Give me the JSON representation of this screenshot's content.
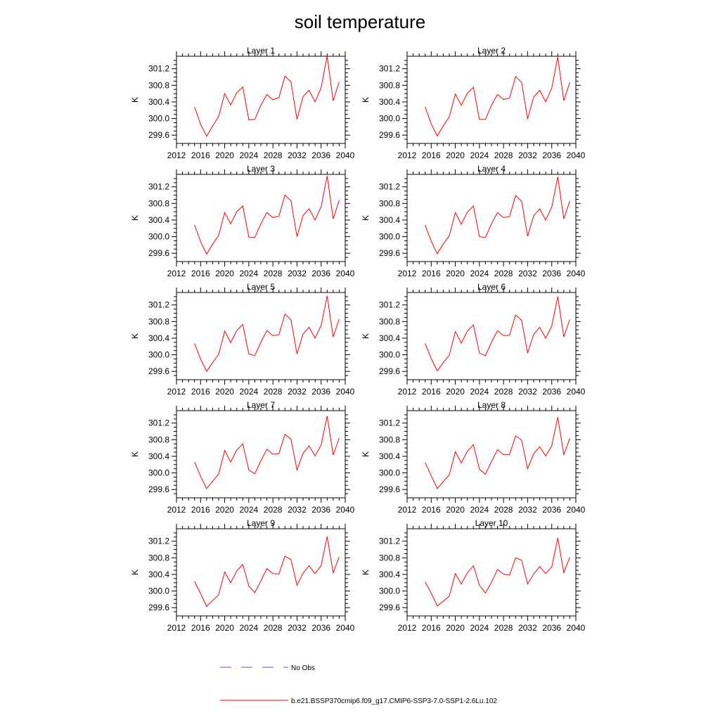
{
  "chart_data": {
    "type": "line",
    "title": "soil temperature",
    "ylabel": "K",
    "xlim": [
      2012,
      2040
    ],
    "ylim": [
      299.4,
      301.5
    ],
    "x_ticks": [
      2012,
      2016,
      2020,
      2024,
      2028,
      2032,
      2036,
      2040
    ],
    "y_ticks": [
      299.6,
      300.0,
      300.4,
      300.8,
      301.2
    ],
    "y_tick_labels": [
      "299.6",
      "300.0",
      "300.4",
      "300.8",
      "301.2"
    ],
    "x": [
      2015,
      2016,
      2017,
      2018,
      2019,
      2020,
      2021,
      2022,
      2023,
      2024,
      2025,
      2026,
      2027,
      2028,
      2029,
      2030,
      2031,
      2032,
      2033,
      2034,
      2035,
      2036,
      2037,
      2038,
      2039
    ],
    "series_color": "#ff0000",
    "panels": [
      {
        "title": "Layer 1",
        "values": [
          300.28,
          299.86,
          299.57,
          299.82,
          300.05,
          300.6,
          300.33,
          300.62,
          300.76,
          299.97,
          299.98,
          300.32,
          300.58,
          300.45,
          300.5,
          301.02,
          300.88,
          299.98,
          300.53,
          300.68,
          300.4,
          300.74,
          301.5,
          300.43,
          300.88
        ]
      },
      {
        "title": "Layer 2",
        "values": [
          300.28,
          299.87,
          299.58,
          299.82,
          300.04,
          300.59,
          300.32,
          300.61,
          300.75,
          299.98,
          299.98,
          300.32,
          300.58,
          300.46,
          300.49,
          301.01,
          300.87,
          299.99,
          300.52,
          300.68,
          300.4,
          300.73,
          301.48,
          300.43,
          300.87
        ]
      },
      {
        "title": "Layer 3",
        "values": [
          300.28,
          299.88,
          299.58,
          299.82,
          300.03,
          300.58,
          300.31,
          300.6,
          300.74,
          299.99,
          299.98,
          300.31,
          300.58,
          300.46,
          300.49,
          301.0,
          300.86,
          300.0,
          300.51,
          300.67,
          300.4,
          300.72,
          301.46,
          300.43,
          300.87
        ]
      },
      {
        "title": "Layer 4",
        "values": [
          300.28,
          299.89,
          299.59,
          299.82,
          300.02,
          300.58,
          300.3,
          300.59,
          300.74,
          300.0,
          299.98,
          300.31,
          300.58,
          300.46,
          300.48,
          300.99,
          300.85,
          300.01,
          300.5,
          300.67,
          300.4,
          300.71,
          301.44,
          300.43,
          300.86
        ]
      },
      {
        "title": "Layer 5",
        "values": [
          300.27,
          299.9,
          299.6,
          299.81,
          300.01,
          300.57,
          300.29,
          300.58,
          300.73,
          300.02,
          299.98,
          300.3,
          300.58,
          300.46,
          300.48,
          300.98,
          300.84,
          300.02,
          300.5,
          300.66,
          300.4,
          300.7,
          301.42,
          300.43,
          300.86
        ]
      },
      {
        "title": "Layer 6",
        "values": [
          300.27,
          299.91,
          299.61,
          299.81,
          299.99,
          300.56,
          300.28,
          300.57,
          300.72,
          300.04,
          299.98,
          300.3,
          300.58,
          300.46,
          300.47,
          300.96,
          300.83,
          300.04,
          300.49,
          300.66,
          300.4,
          300.69,
          301.4,
          300.43,
          300.85
        ]
      },
      {
        "title": "Layer 7",
        "values": [
          300.26,
          299.92,
          299.62,
          299.8,
          299.97,
          300.54,
          300.26,
          300.55,
          300.7,
          300.07,
          299.98,
          300.29,
          300.57,
          300.45,
          300.46,
          300.93,
          300.81,
          300.07,
          300.47,
          300.65,
          300.41,
          300.67,
          301.37,
          300.43,
          300.84
        ]
      },
      {
        "title": "Layer 8",
        "values": [
          300.25,
          299.93,
          299.62,
          299.79,
          299.95,
          300.51,
          300.24,
          300.52,
          300.68,
          300.09,
          299.97,
          300.27,
          300.56,
          300.44,
          300.44,
          300.89,
          300.79,
          300.1,
          300.46,
          300.63,
          300.41,
          300.65,
          301.34,
          300.44,
          300.83
        ]
      },
      {
        "title": "Layer 9",
        "values": [
          300.23,
          299.94,
          299.63,
          299.77,
          299.91,
          300.46,
          300.2,
          300.48,
          300.64,
          300.12,
          299.96,
          300.24,
          300.54,
          300.42,
          300.41,
          300.84,
          300.76,
          300.14,
          300.43,
          300.61,
          300.42,
          300.61,
          301.31,
          300.44,
          300.82
        ]
      },
      {
        "title": "Layer 10",
        "values": [
          300.22,
          299.95,
          299.64,
          299.75,
          299.88,
          300.42,
          300.17,
          300.44,
          300.61,
          300.14,
          299.95,
          300.21,
          300.52,
          300.41,
          300.38,
          300.8,
          300.74,
          300.17,
          300.41,
          300.59,
          300.42,
          300.58,
          301.28,
          300.44,
          300.81
        ]
      }
    ],
    "legend": [
      {
        "label": "No Obs",
        "style": "dashed",
        "color": "#4a5fcf"
      },
      {
        "label": "b.e21.BSSP370cmip6.f09_g17.CMIP6-SSP3-7.0-SSP1-2.6Lu.102",
        "style": "solid",
        "color": "#ff0000"
      }
    ]
  }
}
